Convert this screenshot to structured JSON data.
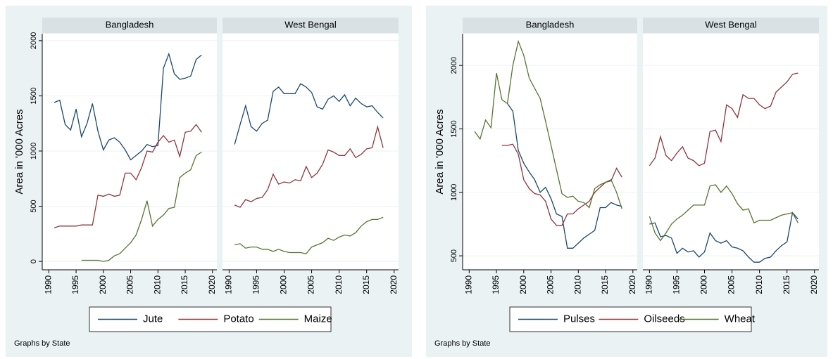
{
  "chart_data": [
    {
      "type": "line",
      "ylabel": "Area in '000 Acres",
      "note": "Graphs by State",
      "x": [
        1990,
        1991,
        1992,
        1993,
        1994,
        1995,
        1996,
        1997,
        1998,
        1999,
        2000,
        2001,
        2002,
        2003,
        2004,
        2005,
        2006,
        2007,
        2008,
        2009,
        2010,
        2011,
        2012,
        2013,
        2014,
        2015,
        2016,
        2017,
        2018
      ],
      "xlim": [
        1988.8,
        2020.8
      ],
      "xticks": [
        1990,
        1995,
        2000,
        2005,
        2010,
        2015,
        2020
      ],
      "ylim": [
        -76,
        2063
      ],
      "yticks": [
        0,
        500,
        1000,
        1500,
        2000
      ],
      "grid": true,
      "series": [
        {
          "name": "Jute",
          "color": "#1a476f"
        },
        {
          "name": "Potato",
          "color": "#90353b"
        },
        {
          "name": "Maize",
          "color": "#55752f"
        }
      ],
      "panels": [
        {
          "title": "Bangladesh",
          "values": [
            [
              null,
              1440,
              1460,
              1240,
              1190,
              1380,
              1130,
              1250,
              1430,
              1180,
              1010,
              1100,
              1120,
              1080,
              1010,
              920,
              960,
              1000,
              1060,
              1040,
              1050,
              1750,
              1880,
              1700,
              1650,
              1660,
              1680,
              1830,
              1870
            ],
            [
              null,
              305,
              320,
              320,
              320,
              320,
              330,
              330,
              330,
              600,
              590,
              610,
              590,
              600,
              800,
              800,
              740,
              850,
              1000,
              990,
              1080,
              1140,
              1080,
              1100,
              950,
              1170,
              1180,
              1240,
              1170
            ],
            [
              null,
              null,
              null,
              null,
              null,
              null,
              10,
              10,
              10,
              10,
              0,
              10,
              50,
              70,
              120,
              170,
              240,
              380,
              550,
              320,
              380,
              420,
              480,
              490,
              760,
              800,
              830,
              960,
              990
            ]
          ]
        },
        {
          "title": "West Bengal",
          "values": [
            [
              null,
              1060,
              1240,
              1410,
              1220,
              1180,
              1250,
              1280,
              1540,
              1580,
              1520,
              1520,
              1520,
              1610,
              1580,
              1530,
              1400,
              1380,
              1470,
              1500,
              1450,
              1510,
              1410,
              1480,
              1430,
              1400,
              1410,
              1350,
              1300
            ],
            [
              null,
              510,
              490,
              560,
              540,
              570,
              580,
              650,
              790,
              700,
              720,
              710,
              740,
              730,
              860,
              760,
              800,
              880,
              1010,
              990,
              960,
              960,
              1020,
              940,
              970,
              1020,
              1030,
              1220,
              1030
            ],
            [
              null,
              150,
              160,
              120,
              130,
              130,
              110,
              110,
              90,
              110,
              90,
              80,
              80,
              80,
              70,
              130,
              150,
              170,
              210,
              190,
              220,
              240,
              230,
              260,
              320,
              360,
              380,
              380,
              400
            ]
          ]
        }
      ]
    },
    {
      "type": "line",
      "ylabel": "Area in '000 Acres",
      "note": "Graphs by State",
      "x": [
        1990,
        1991,
        1992,
        1993,
        1994,
        1995,
        1996,
        1997,
        1998,
        1999,
        2000,
        2001,
        2002,
        2003,
        2004,
        2005,
        2006,
        2007,
        2008,
        2009,
        2010,
        2011,
        2012,
        2013,
        2014,
        2015,
        2016,
        2017,
        2018
      ],
      "xlim": [
        1988.8,
        2020.8
      ],
      "xticks": [
        1990,
        1995,
        2000,
        2005,
        2010,
        2015,
        2020
      ],
      "ylim": [
        390,
        2250
      ],
      "yticks": [
        500,
        1000,
        1500,
        2000
      ],
      "grid": true,
      "series": [
        {
          "name": "Pulses",
          "color": "#1a476f"
        },
        {
          "name": "Oilseeds",
          "color": "#90353b"
        },
        {
          "name": "Wheat",
          "color": "#55752f"
        }
      ],
      "panels": [
        {
          "title": "Bangladesh",
          "values": [
            [
              null,
              null,
              null,
              null,
              null,
              null,
              null,
              1700,
              1640,
              1330,
              1230,
              1160,
              1100,
              1000,
              1040,
              950,
              830,
              810,
              560,
              560,
              600,
              640,
              670,
              700,
              880,
              880,
              920,
              900,
              890
            ],
            [
              null,
              null,
              null,
              null,
              null,
              null,
              1370,
              1370,
              1380,
              1300,
              1100,
              1030,
              990,
              980,
              930,
              790,
              740,
              740,
              830,
              830,
              870,
              900,
              930,
              1000,
              1040,
              1080,
              1090,
              1190,
              1120
            ],
            [
              null,
              1480,
              1420,
              1570,
              1510,
              1940,
              1730,
              1700,
              2000,
              2190,
              2080,
              1900,
              1820,
              1740,
              1560,
              1370,
              1180,
              990,
              960,
              970,
              930,
              920,
              880,
              1030,
              1060,
              1080,
              1100,
              1000,
              870
            ]
          ]
        },
        {
          "title": "West Bengal",
          "values": [
            [
              750,
              760,
              650,
              660,
              640,
              520,
              560,
              530,
              540,
              490,
              530,
              680,
              620,
              600,
              620,
              570,
              560,
              540,
              490,
              450,
              450,
              480,
              490,
              540,
              580,
              610,
              840,
              790,
              null
            ],
            [
              1210,
              1270,
              1440,
              1290,
              1250,
              1310,
              1360,
              1270,
              1250,
              1210,
              1230,
              1480,
              1490,
              1400,
              1690,
              1660,
              1590,
              1770,
              1740,
              1740,
              1690,
              1660,
              1680,
              1790,
              1830,
              1870,
              1930,
              1940,
              null
            ],
            [
              810,
              680,
              620,
              680,
              750,
              790,
              820,
              860,
              900,
              900,
              900,
              1050,
              1060,
              1000,
              1050,
              990,
              910,
              860,
              870,
              760,
              780,
              780,
              780,
              800,
              820,
              830,
              840,
              760,
              null
            ]
          ]
        }
      ]
    }
  ]
}
